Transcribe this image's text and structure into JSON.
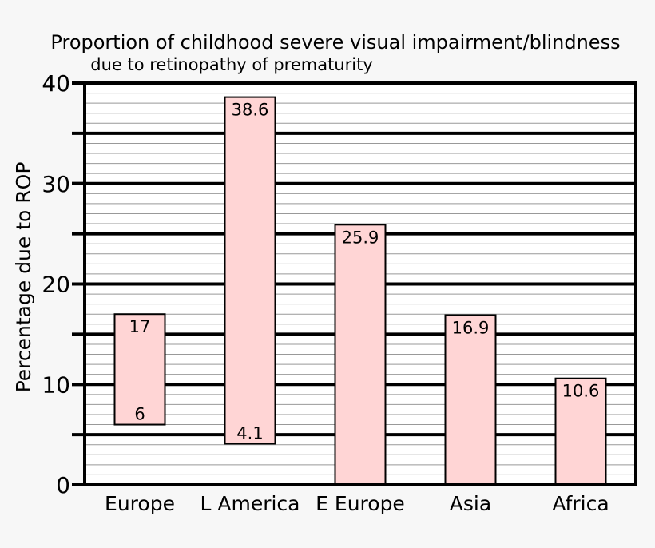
{
  "chart_data": {
    "type": "bar",
    "title": "Proportion of childhood severe visual impairment/blindness",
    "subtitle": "due to retinopathy of prematurity",
    "xlabel": "",
    "ylabel": "Percentage due to ROP",
    "ylim": [
      0,
      40
    ],
    "y_ticks": [
      "0",
      "10",
      "20",
      "30",
      "40"
    ],
    "grid": true,
    "categories": [
      "Europe",
      "L America",
      "E Europe",
      "Asia",
      "Africa"
    ],
    "bars": [
      {
        "low": 6,
        "high": 17,
        "high_label": "17",
        "low_label": "6"
      },
      {
        "low": 4.1,
        "high": 38.6,
        "high_label": "38.6",
        "low_label": "4.1"
      },
      {
        "low": 0,
        "high": 25.9,
        "high_label": "25.9",
        "low_label": ""
      },
      {
        "low": 0,
        "high": 16.9,
        "high_label": "16.9",
        "low_label": ""
      },
      {
        "low": 0,
        "high": 10.6,
        "high_label": "10.6",
        "low_label": ""
      }
    ],
    "colors": {
      "bar_fill": "#ffd5d5",
      "background": "#f7f7f7",
      "plot_background": "#ffffff",
      "axis": "#000000",
      "minor_grid": "#999999"
    }
  }
}
